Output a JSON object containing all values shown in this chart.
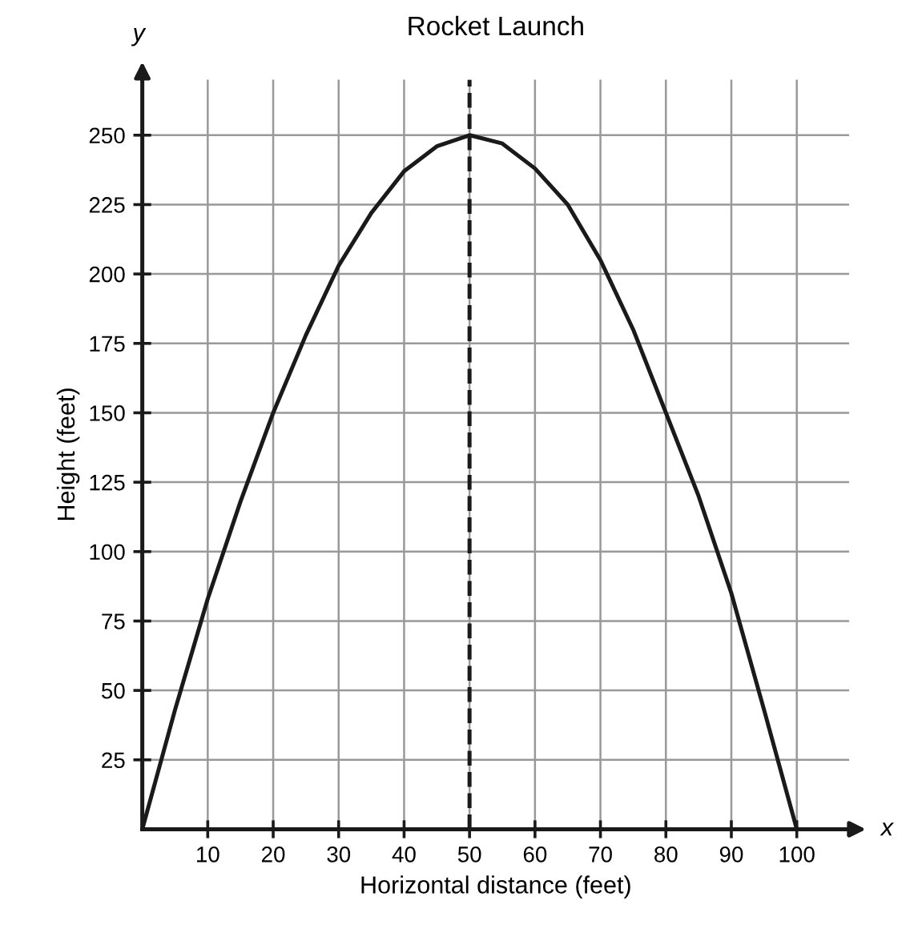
{
  "chart_data": {
    "type": "line",
    "title": "Rocket Launch",
    "xlabel": "Horizontal distance (feet)",
    "ylabel": "Height (feet)",
    "annotations": [
      "y",
      "x"
    ],
    "series": [
      {
        "color": "#1a1a1a",
        "x": [
          0,
          5,
          10,
          15,
          20,
          25,
          30,
          35,
          40,
          45,
          50,
          55,
          60,
          65,
          70,
          75,
          80,
          85,
          90,
          95,
          100
        ],
        "values": [
          0,
          43,
          83,
          118,
          150,
          178,
          203,
          222,
          237,
          246,
          250,
          247,
          238,
          225,
          205,
          180,
          150,
          120,
          85,
          43,
          0
        ]
      }
    ],
    "xlim": [
      0,
      108
    ],
    "ylim": [
      0,
      270
    ],
    "xticks": [
      10,
      20,
      30,
      40,
      50,
      60,
      70,
      80,
      90,
      100
    ],
    "yticks": [
      25,
      50,
      75,
      100,
      125,
      150,
      175,
      200,
      225,
      250
    ],
    "ref_lines": [
      {
        "axis": "x",
        "value": 50,
        "line_style": "dashed",
        "color": "#1a1a1a"
      }
    ],
    "grid": true,
    "marker": "none",
    "line_style": "solid",
    "legend": false
  }
}
